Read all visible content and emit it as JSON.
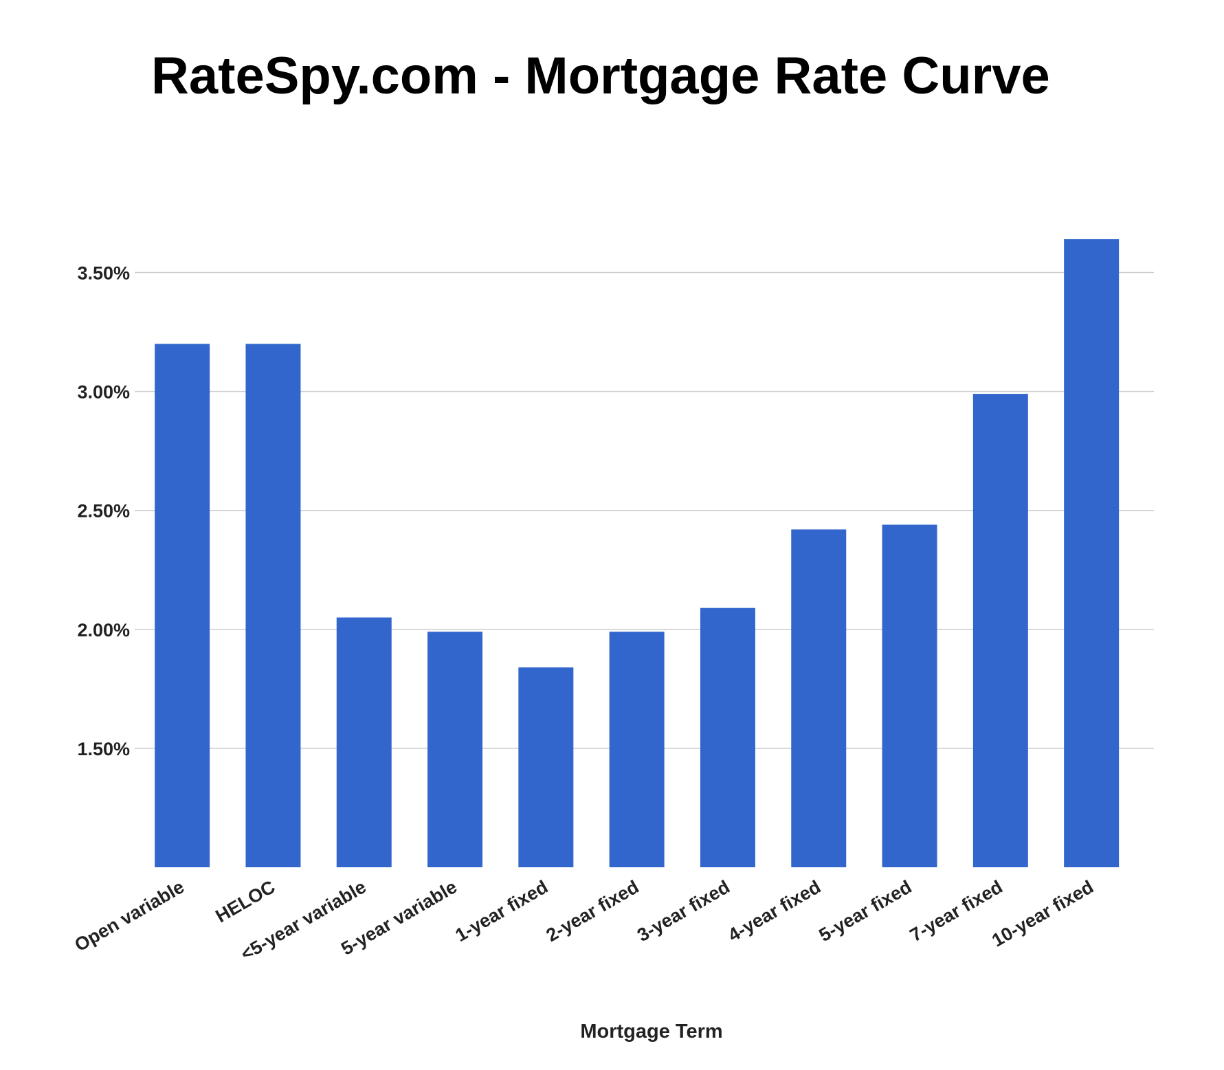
{
  "chart_data": {
    "type": "bar",
    "title": "RateSpy.com - Mortgage Rate Curve",
    "xlabel": "Mortgage Term",
    "ylabel": "",
    "categories": [
      "Open variable",
      "HELOC",
      "<5-year variable",
      "5-year variable",
      "1-year fixed",
      "2-year fixed",
      "3-year fixed",
      "4-year fixed",
      "5-year fixed",
      "7-year fixed",
      "10-year fixed"
    ],
    "values": [
      3.2,
      3.2,
      2.05,
      1.99,
      1.84,
      1.99,
      2.09,
      2.42,
      2.44,
      2.99,
      3.64
    ],
    "value_unit": "%",
    "ylim": [
      1.0,
      3.75
    ],
    "yticks": [
      1.5,
      2.0,
      2.5,
      3.0,
      3.5
    ],
    "ytick_labels": [
      "1.50%",
      "2.00%",
      "2.50%",
      "3.00%",
      "3.50%"
    ],
    "grid": true,
    "legend": "none",
    "colors": {
      "bar": "#3366cc",
      "gridline": "#cccccc",
      "title": "#000000",
      "labels": "#222222"
    }
  }
}
